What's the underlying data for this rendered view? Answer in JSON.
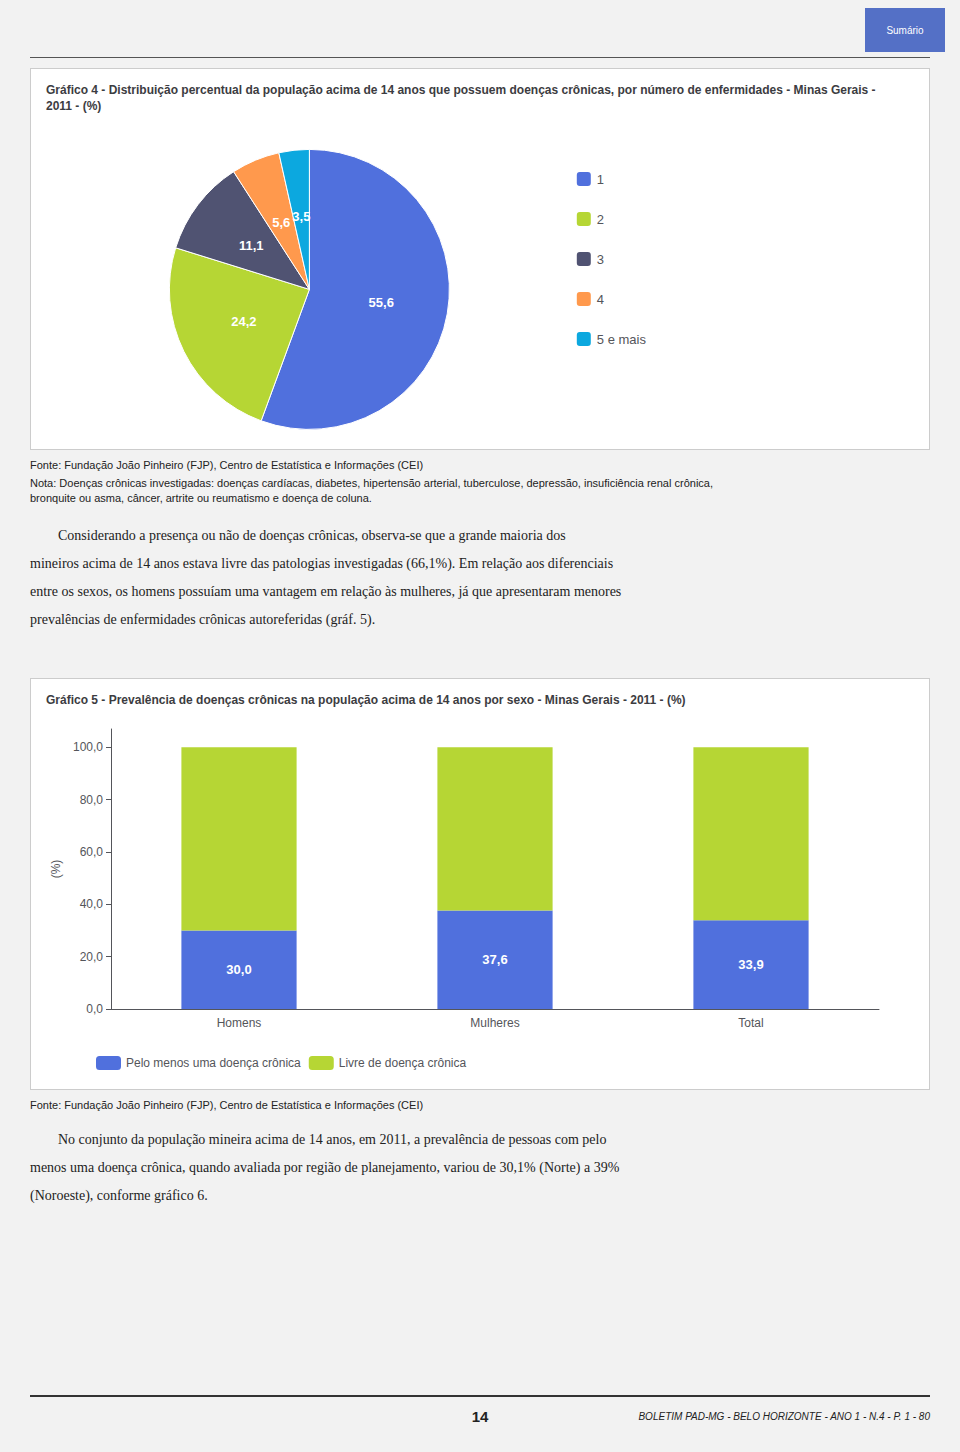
{
  "chart_data": [
    {
      "type": "pie",
      "title": "Gráfico 4 - Distribuição percentual da população acima de 14 anos que possuem doenças crônicas, por número de enfermidades - Minas Gerais -\n2011 - (%)",
      "categories": [
        "1",
        "2",
        "3",
        "4",
        "5 e mais"
      ],
      "values": [
        55.6,
        24.2,
        11.1,
        5.6,
        3.5
      ],
      "value_labels": [
        "55,6",
        "24,2",
        "11,1",
        "5,6",
        "3,5"
      ],
      "data_labels": true,
      "legend": "right",
      "annotations": [
        "Sumário",
        "Fonte: Fundação João Pinheiro (FJP), Centro de Estatística e Informações (CEI)",
        "Nota: Doenças crônicas investigadas: doenças cardíacas, diabetes, hipertensão arterial, tuberculose, depressão, insuficiência renal crônica,\nbronquite ou asma, câncer, artrite ou reumatismo e doença de coluna.",
        "        Considerando a presença ou não de doenças crônicas, observa-se que a grande maioria dos\nmineiros acima de 14 anos estava livre das patologias investigadas (66,1%). Em relação aos diferenciais\nentre os sexos, os homens possuíam uma vantagem em relação às mulheres, já que apresentaram menores\nprevalências de enfermidades crônicas autoreferidas (gráf. 5)."
      ]
    },
    {
      "type": "bar",
      "title": "Gráfico 5 - Prevalência de doenças crônicas na população acima de 14 anos por sexo - Minas Gerais - 2011 - (%)",
      "categories": [
        "Homens",
        "Mulheres",
        "Total"
      ],
      "series": [
        {
          "name": "Pelo menos uma doença crônica",
          "values": [
            30.0,
            37.6,
            33.9
          ],
          "value_labels": [
            "30,0",
            "37,6",
            "33,9"
          ],
          "data_labels": true
        },
        {
          "name": "Livre de doença crônica",
          "values": [
            70.0,
            62.4,
            66.1
          ]
        }
      ],
      "stacked": true,
      "ylabel": "(%)",
      "ylim": [
        0,
        107
      ],
      "yticks": [
        {
          "value": 0,
          "label": "0,0"
        },
        {
          "value": 20,
          "label": "20,0"
        },
        {
          "value": 40,
          "label": "40,0"
        },
        {
          "value": 60,
          "label": "60,0"
        },
        {
          "value": 80,
          "label": "80,0"
        },
        {
          "value": 100,
          "label": "100,0"
        }
      ],
      "grid": false,
      "legend": "bottom",
      "annotations": [
        "Fonte: Fundação João Pinheiro (FJP), Centro de Estatística e Informações (CEI)",
        "        No conjunto da população mineira acima de 14 anos, em 2011, a prevalência de pessoas com pelo\nmenos uma doença crônica, quando avaliada por região de planejamento, variou de 30,1% (Norte) a 39%\n(Noroeste), conforme gráfico 6.",
        "14",
        "BOLETIM PAD-MG - BELO HORIZONTE - ANO 1 - N.4 - P. 1 - 80"
      ]
    }
  ]
}
